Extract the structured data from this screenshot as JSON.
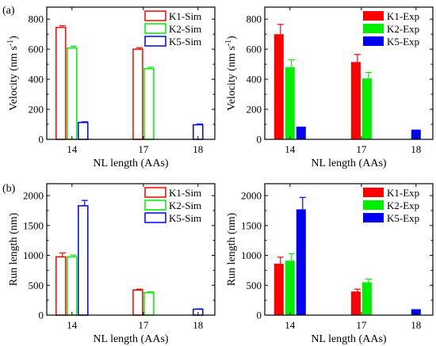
{
  "panel_labels": [
    "(a)",
    "(b)"
  ],
  "colors": {
    "K1": "#ff0000",
    "K2": "#00ee00",
    "K5": "#0000ee"
  },
  "chart_data": [
    {
      "id": "a-sim",
      "type": "bar",
      "style": "hollow",
      "categories": [
        "14",
        "17",
        "18"
      ],
      "series": [
        {
          "name": "K1-Sim",
          "key": "K1",
          "values": [
            745,
            600,
            null
          ],
          "errors": [
            12,
            10,
            null
          ]
        },
        {
          "name": "K2-Sim",
          "key": "K2",
          "values": [
            608,
            470,
            null
          ],
          "errors": [
            12,
            10,
            null
          ]
        },
        {
          "name": "K5-Sim",
          "key": "K5",
          "values": [
            112,
            null,
            97
          ],
          "errors": [
            5,
            null,
            5
          ]
        }
      ],
      "xlabel": "NL length (AAs)",
      "ylabel": "Velocity (nm s",
      "ylabel_sup": "-1",
      "ylabel_close": ")",
      "ylim": [
        0,
        880
      ],
      "yticks": [
        0,
        200,
        400,
        600,
        800
      ],
      "legend_position": "top-right"
    },
    {
      "id": "a-exp",
      "type": "bar",
      "style": "filled",
      "categories": [
        "14",
        "17",
        "18"
      ],
      "series": [
        {
          "name": "K1-Exp",
          "key": "K1",
          "values": [
            700,
            515,
            null
          ],
          "errors": [
            65,
            50,
            null
          ]
        },
        {
          "name": "K2-Exp",
          "key": "K2",
          "values": [
            480,
            405,
            null
          ],
          "errors": [
            50,
            40,
            null
          ]
        },
        {
          "name": "K5-Exp",
          "key": "K5",
          "values": [
            85,
            null,
            65
          ],
          "errors": [
            0,
            null,
            0
          ]
        }
      ],
      "xlabel": "NL length (AAs)",
      "ylabel": "Velocity (nm s",
      "ylabel_sup": "-1",
      "ylabel_close": ")",
      "ylim": [
        0,
        880
      ],
      "yticks": [
        0,
        200,
        400,
        600,
        800
      ],
      "legend_position": "top-right"
    },
    {
      "id": "b-sim",
      "type": "bar",
      "style": "hollow",
      "categories": [
        "14",
        "17",
        "18"
      ],
      "series": [
        {
          "name": "K1-Sim",
          "key": "K1",
          "values": [
            975,
            420,
            null
          ],
          "errors": [
            65,
            15,
            null
          ]
        },
        {
          "name": "K2-Sim",
          "key": "K2",
          "values": [
            975,
            375,
            null
          ],
          "errors": [
            30,
            15,
            null
          ]
        },
        {
          "name": "K5-Sim",
          "key": "K5",
          "values": [
            1830,
            null,
            100
          ],
          "errors": [
            90,
            null,
            5
          ]
        }
      ],
      "xlabel": "NL length (AAs)",
      "ylabel": "Run length (nm)",
      "ylim": [
        0,
        2200
      ],
      "yticks": [
        0,
        500,
        1000,
        1500,
        2000
      ],
      "legend_position": "top-right"
    },
    {
      "id": "b-exp",
      "type": "bar",
      "style": "filled",
      "categories": [
        "14",
        "17",
        "18"
      ],
      "series": [
        {
          "name": "K1-Exp",
          "key": "K1",
          "values": [
            860,
            395,
            null
          ],
          "errors": [
            110,
            40,
            null
          ]
        },
        {
          "name": "K2-Exp",
          "key": "K2",
          "values": [
            910,
            550,
            null
          ],
          "errors": [
            120,
            55,
            null
          ]
        },
        {
          "name": "K5-Exp",
          "key": "K5",
          "values": [
            1770,
            null,
            100
          ],
          "errors": [
            200,
            null,
            0
          ]
        }
      ],
      "xlabel": "NL length (AAs)",
      "ylabel": "Run length (nm)",
      "ylim": [
        0,
        2200
      ],
      "yticks": [
        0,
        500,
        1000,
        1500,
        2000
      ],
      "legend_position": "top-right"
    }
  ]
}
